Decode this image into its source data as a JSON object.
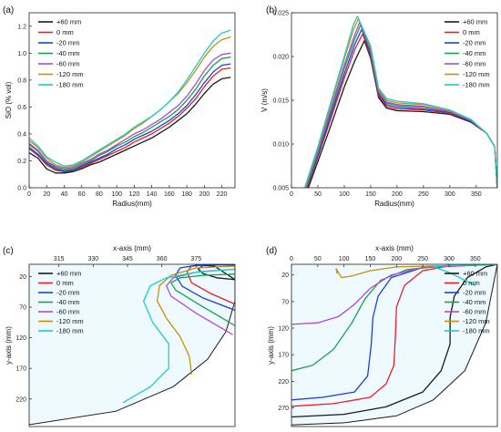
{
  "colors": [
    "#1a1a1a",
    "#ee1c25",
    "#1f3fd8",
    "#15a34a",
    "#b048d8",
    "#c8900a",
    "#1ccccc"
  ],
  "legend": [
    "+60 mm",
    "0 mm",
    "-20 mm",
    "-40 mm",
    "-60 mm",
    "-120 mm",
    "-180 mm"
  ],
  "chart_data": [
    {
      "id": "a",
      "panel_label": "(a)",
      "type": "line",
      "xlabel": "Radius(mm)",
      "ylabel": "SiO (% vol)",
      "xlim": [
        0,
        235
      ],
      "ylim": [
        0,
        1.3
      ],
      "xticks": [
        0,
        20,
        40,
        60,
        80,
        100,
        120,
        140,
        160,
        180,
        200,
        220
      ],
      "yticks": [
        0.0,
        0.2,
        0.4,
        0.6,
        0.8,
        1.0,
        1.2
      ],
      "ytick_labels": [
        "0.0",
        "0.2",
        "0.4",
        "0.6",
        "0.8",
        "1.0",
        "1.2"
      ],
      "series": [
        {
          "name": "+60 mm",
          "x": [
            0,
            10,
            20,
            30,
            40,
            50,
            60,
            70,
            80,
            90,
            100,
            110,
            120,
            130,
            140,
            150,
            160,
            170,
            180,
            190,
            200,
            210,
            220,
            230
          ],
          "y": [
            0.26,
            0.22,
            0.14,
            0.11,
            0.11,
            0.12,
            0.14,
            0.17,
            0.19,
            0.22,
            0.25,
            0.28,
            0.31,
            0.34,
            0.37,
            0.41,
            0.45,
            0.5,
            0.55,
            0.62,
            0.7,
            0.77,
            0.81,
            0.82
          ]
        },
        {
          "name": "0 mm",
          "x": [
            0,
            10,
            20,
            30,
            40,
            50,
            60,
            70,
            80,
            90,
            100,
            110,
            120,
            130,
            140,
            150,
            160,
            170,
            180,
            190,
            200,
            210,
            220,
            230
          ],
          "y": [
            0.29,
            0.24,
            0.17,
            0.13,
            0.12,
            0.13,
            0.15,
            0.18,
            0.21,
            0.24,
            0.27,
            0.3,
            0.34,
            0.37,
            0.4,
            0.44,
            0.48,
            0.53,
            0.59,
            0.66,
            0.75,
            0.83,
            0.88,
            0.89
          ]
        },
        {
          "name": "-20 mm",
          "x": [
            0,
            10,
            20,
            30,
            40,
            50,
            60,
            70,
            80,
            90,
            100,
            110,
            120,
            130,
            140,
            150,
            160,
            170,
            180,
            190,
            200,
            210,
            220,
            230
          ],
          "y": [
            0.3,
            0.25,
            0.18,
            0.14,
            0.12,
            0.13,
            0.16,
            0.19,
            0.22,
            0.25,
            0.29,
            0.32,
            0.36,
            0.39,
            0.42,
            0.46,
            0.5,
            0.55,
            0.61,
            0.69,
            0.78,
            0.86,
            0.91,
            0.92
          ]
        },
        {
          "name": "-40 mm",
          "x": [
            0,
            10,
            20,
            30,
            40,
            50,
            60,
            70,
            80,
            90,
            100,
            110,
            120,
            130,
            140,
            150,
            160,
            170,
            180,
            190,
            200,
            210,
            220,
            230
          ],
          "y": [
            0.32,
            0.27,
            0.19,
            0.15,
            0.13,
            0.14,
            0.17,
            0.2,
            0.24,
            0.27,
            0.31,
            0.34,
            0.38,
            0.41,
            0.45,
            0.49,
            0.53,
            0.58,
            0.65,
            0.73,
            0.83,
            0.91,
            0.96,
            0.97
          ]
        },
        {
          "name": "-60 mm",
          "x": [
            0,
            10,
            20,
            30,
            40,
            50,
            60,
            70,
            80,
            90,
            100,
            110,
            120,
            130,
            140,
            150,
            160,
            170,
            180,
            190,
            200,
            210,
            220,
            230
          ],
          "y": [
            0.33,
            0.28,
            0.2,
            0.16,
            0.14,
            0.15,
            0.18,
            0.21,
            0.25,
            0.28,
            0.32,
            0.36,
            0.4,
            0.43,
            0.47,
            0.51,
            0.56,
            0.61,
            0.68,
            0.77,
            0.87,
            0.95,
            0.99,
            1.0
          ]
        },
        {
          "name": "-120 mm",
          "x": [
            0,
            10,
            20,
            30,
            40,
            50,
            60,
            70,
            80,
            90,
            100,
            110,
            120,
            130,
            140,
            150,
            160,
            170,
            180,
            190,
            200,
            210,
            220,
            230
          ],
          "y": [
            0.35,
            0.3,
            0.22,
            0.17,
            0.15,
            0.16,
            0.19,
            0.23,
            0.27,
            0.31,
            0.35,
            0.39,
            0.44,
            0.48,
            0.53,
            0.58,
            0.64,
            0.7,
            0.78,
            0.87,
            0.97,
            1.05,
            1.1,
            1.12
          ]
        },
        {
          "name": "-180 mm",
          "x": [
            0,
            10,
            20,
            30,
            40,
            50,
            60,
            70,
            80,
            90,
            100,
            110,
            120,
            130,
            140,
            150,
            160,
            170,
            180,
            190,
            200,
            210,
            220,
            230
          ],
          "y": [
            0.37,
            0.31,
            0.23,
            0.19,
            0.16,
            0.17,
            0.2,
            0.24,
            0.28,
            0.32,
            0.36,
            0.4,
            0.45,
            0.49,
            0.53,
            0.58,
            0.64,
            0.71,
            0.8,
            0.9,
            1.0,
            1.09,
            1.15,
            1.17
          ]
        }
      ]
    },
    {
      "id": "b",
      "panel_label": "(b)",
      "type": "line",
      "xlabel": "Radius(mm)",
      "ylabel": "V (m/s)",
      "xlim": [
        0,
        390
      ],
      "ylim": [
        0.005,
        0.025
      ],
      "xticks": [
        0,
        50,
        100,
        150,
        200,
        250,
        300,
        350
      ],
      "yticks": [
        0.005,
        0.01,
        0.015,
        0.02,
        0.025
      ],
      "ytick_labels": [
        "0.005",
        "0.010",
        "0.015",
        "0.020",
        "0.025"
      ],
      "series": [
        {
          "name": "+60 mm",
          "x": [
            32,
            50,
            75,
            100,
            120,
            138,
            150,
            165,
            180,
            200,
            250,
            300,
            340,
            370,
            385,
            390
          ],
          "y": [
            0.005,
            0.008,
            0.0122,
            0.0165,
            0.0195,
            0.0218,
            0.0198,
            0.0153,
            0.0141,
            0.0138,
            0.0137,
            0.0134,
            0.0125,
            0.0112,
            0.0097,
            0.0047
          ]
        },
        {
          "name": "0 mm",
          "x": [
            30,
            50,
            75,
            100,
            120,
            135,
            150,
            165,
            180,
            200,
            250,
            300,
            340,
            370,
            385,
            390
          ],
          "y": [
            0.005,
            0.0085,
            0.013,
            0.0175,
            0.0208,
            0.0226,
            0.02,
            0.0155,
            0.0143,
            0.014,
            0.0139,
            0.0135,
            0.0126,
            0.0112,
            0.0097,
            0.0047
          ]
        },
        {
          "name": "-20 mm",
          "x": [
            29,
            50,
            75,
            100,
            120,
            133,
            150,
            165,
            180,
            200,
            250,
            300,
            340,
            370,
            385,
            390
          ],
          "y": [
            0.005,
            0.0087,
            0.0134,
            0.018,
            0.0214,
            0.0231,
            0.0203,
            0.0157,
            0.0145,
            0.0142,
            0.014,
            0.0136,
            0.0126,
            0.0112,
            0.0097,
            0.0047
          ]
        },
        {
          "name": "-40 mm",
          "x": [
            28,
            50,
            75,
            100,
            120,
            131,
            150,
            165,
            180,
            200,
            250,
            300,
            340,
            370,
            385,
            390
          ],
          "y": [
            0.005,
            0.009,
            0.0138,
            0.0186,
            0.022,
            0.0236,
            0.0206,
            0.0159,
            0.0147,
            0.0144,
            0.0142,
            0.0137,
            0.0127,
            0.0112,
            0.0097,
            0.0047
          ]
        },
        {
          "name": "-60 mm",
          "x": [
            27,
            50,
            75,
            100,
            120,
            129,
            150,
            165,
            180,
            200,
            250,
            300,
            340,
            370,
            385,
            390
          ],
          "y": [
            0.005,
            0.0092,
            0.0141,
            0.019,
            0.0225,
            0.0239,
            0.0208,
            0.016,
            0.0148,
            0.0145,
            0.0143,
            0.0137,
            0.0127,
            0.0112,
            0.0097,
            0.0047
          ]
        },
        {
          "name": "-120 mm",
          "x": [
            26,
            50,
            75,
            100,
            118,
            127,
            150,
            165,
            180,
            200,
            250,
            300,
            340,
            370,
            385,
            390
          ],
          "y": [
            0.005,
            0.0095,
            0.0146,
            0.0197,
            0.0232,
            0.0243,
            0.021,
            0.0162,
            0.015,
            0.0147,
            0.0145,
            0.0138,
            0.0128,
            0.0112,
            0.0097,
            0.0047
          ]
        },
        {
          "name": "-180 mm",
          "x": [
            25,
            50,
            75,
            100,
            117,
            125,
            150,
            165,
            180,
            200,
            250,
            300,
            340,
            370,
            385,
            390
          ],
          "y": [
            0.005,
            0.0097,
            0.0149,
            0.02,
            0.0236,
            0.0246,
            0.0212,
            0.0164,
            0.0152,
            0.0149,
            0.0146,
            0.0139,
            0.0128,
            0.0112,
            0.0097,
            0.0047
          ]
        }
      ]
    },
    {
      "id": "c",
      "panel_label": "(c)",
      "type": "line",
      "xlabel": "x-axis (mm)",
      "ylabel": "y-axis (mm)",
      "xlim": [
        302,
        392
      ],
      "ylim": [
        265,
        0
      ],
      "xticks": [
        315,
        330,
        345,
        360,
        375
      ],
      "yticks": [
        20,
        70,
        120,
        170,
        220
      ],
      "boundary": {
        "x": [
          302,
          340,
          365,
          380,
          388,
          392,
          392
        ],
        "y": [
          262,
          240,
          200,
          155,
          110,
          60,
          0
        ]
      },
      "series": [
        {
          "name": "+60 mm",
          "x": [
            392,
            383,
            378,
            376,
            378,
            384,
            392
          ],
          "y": [
            25,
            3,
            2,
            8,
            15,
            22,
            25
          ]
        },
        {
          "name": "0 mm",
          "x": [
            392,
            381,
            373,
            371,
            373,
            380,
            392
          ],
          "y": [
            65,
            47,
            30,
            12,
            3,
            1,
            1
          ]
        },
        {
          "name": "-20 mm",
          "x": [
            392,
            378,
            369,
            366,
            368,
            376,
            392
          ],
          "y": [
            75,
            55,
            36,
            18,
            6,
            1,
            1
          ]
        },
        {
          "name": "-40 mm",
          "x": [
            392,
            376,
            366,
            364,
            368,
            378,
            392
          ],
          "y": [
            100,
            65,
            42,
            30,
            22,
            18,
            16
          ]
        },
        {
          "name": "-60 mm",
          "x": [
            391,
            375,
            364,
            362,
            365,
            376,
            392
          ],
          "y": [
            115,
            80,
            52,
            35,
            22,
            12,
            8
          ]
        },
        {
          "name": "-120 mm",
          "x": [
            373,
            372,
            368,
            362,
            358,
            359,
            364,
            375,
            392
          ],
          "y": [
            180,
            150,
            118,
            88,
            60,
            35,
            18,
            6,
            3
          ]
        },
        {
          "name": "-180 mm",
          "x": [
            343,
            355,
            363,
            363,
            356,
            352,
            355,
            362,
            375,
            392
          ],
          "y": [
            226,
            200,
            170,
            130,
            95,
            60,
            35,
            22,
            13,
            8
          ]
        }
      ]
    },
    {
      "id": "d",
      "panel_label": "(d)",
      "type": "line",
      "xlabel": "x-axis (mm)",
      "ylabel": "y-axis (mm)",
      "xlim": [
        0,
        392
      ],
      "ylim": [
        305,
        0
      ],
      "xticks": [
        0,
        50,
        100,
        150,
        200,
        250,
        300,
        350
      ],
      "yticks": [
        20,
        70,
        120,
        170,
        220,
        270
      ],
      "boundary": {
        "x": [
          0,
          100,
          200,
          270,
          330,
          370,
          392
        ],
        "y": [
          302,
          298,
          285,
          255,
          200,
          110,
          0
        ]
      },
      "series": [
        {
          "name": "+60 mm",
          "x": [
            0,
            100,
            180,
            250,
            285,
            302,
            302,
            310,
            335,
            370,
            392
          ],
          "y": [
            287,
            282,
            268,
            240,
            200,
            150,
            100,
            60,
            25,
            5,
            0
          ]
        },
        {
          "name": "0 mm",
          "x": [
            0,
            80,
            150,
            180,
            195,
            198,
            200,
            215,
            250,
            300,
            392
          ],
          "y": [
            267,
            262,
            250,
            225,
            190,
            130,
            80,
            40,
            12,
            3,
            0
          ]
        },
        {
          "name": "-20 mm",
          "x": [
            0,
            60,
            120,
            145,
            152,
            155,
            165,
            190,
            250,
            392
          ],
          "y": [
            255,
            250,
            240,
            210,
            150,
            100,
            60,
            25,
            6,
            0
          ]
        },
        {
          "name": "-40 mm",
          "x": [
            0,
            40,
            80,
            115,
            140,
            170,
            220,
            300,
            392
          ],
          "y": [
            200,
            190,
            160,
            110,
            65,
            30,
            10,
            2,
            0
          ]
        },
        {
          "name": "-60 mm",
          "x": [
            0,
            50,
            90,
            120,
            150,
            190,
            250,
            392
          ],
          "y": [
            113,
            110,
            98,
            75,
            45,
            20,
            6,
            0
          ]
        },
        {
          "name": "-120 mm",
          "x": [
            87,
            85,
            95,
            115,
            150,
            200,
            392
          ],
          "y": [
            18,
            8,
            25,
            22,
            12,
            5,
            0
          ]
        },
        {
          "name": "-180 mm",
          "x": [
            350,
            330,
            300,
            270,
            300,
            392
          ],
          "y": [
            40,
            30,
            15,
            5,
            2,
            0
          ]
        }
      ]
    }
  ]
}
